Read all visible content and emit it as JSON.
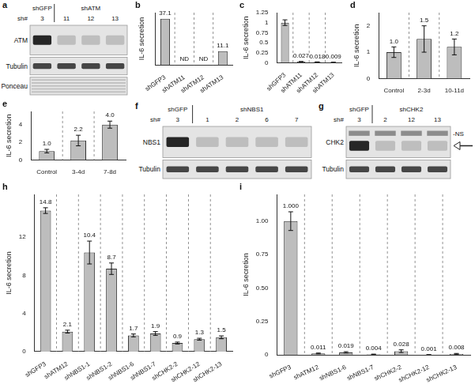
{
  "chart_data": [
    {
      "type": "bar",
      "title": "b",
      "y_label": "IL-6 secretion",
      "categories": [
        "shGFP3",
        "shATM11",
        "shATM12",
        "shATM13"
      ],
      "values": [
        37.1,
        null,
        null,
        11.1
      ],
      "value_labels": [
        "37.1",
        "ND",
        "ND",
        "11.1"
      ],
      "color": "#bdbdbd",
      "ylim": [
        0,
        42
      ],
      "tick_labels": "x",
      "grid": false,
      "data_labels": true
    },
    {
      "type": "bar",
      "title": "c",
      "y_label": "IL-6 secretion",
      "categories": [
        "shGFP3",
        "shATM11",
        "shATM12",
        "shATM13"
      ],
      "values": [
        1,
        0.027,
        0.018,
        0.009
      ],
      "value_labels": [
        null,
        "0.027",
        "0.018",
        "0.009"
      ],
      "errors": [
        0.07,
        0.002,
        0.002,
        0.001
      ],
      "color": "#bdbdbd",
      "ylim": [
        0,
        1.25
      ],
      "yticks": [
        0,
        0.25,
        0.5,
        0.75,
        1,
        1.25
      ],
      "grid": false,
      "data_labels": true
    },
    {
      "type": "bar",
      "title": "d",
      "y_label": "IL-6 secretion",
      "categories": [
        "Control",
        "2-3d",
        "10-11d"
      ],
      "values": [
        1,
        1.5,
        1.2
      ],
      "value_labels": [
        "1.0",
        "1.5",
        "1.2"
      ],
      "errors": [
        0.2,
        0.5,
        0.3
      ],
      "color": "#bdbdbd",
      "ylim": [
        0,
        2.5
      ],
      "yticks": [
        0,
        1,
        2
      ],
      "grid": false,
      "data_labels": true
    },
    {
      "type": "bar",
      "title": "e",
      "y_label": "IL-6 secretion",
      "categories": [
        "Control",
        "3-4d",
        "7-8d"
      ],
      "values": [
        1,
        2.2,
        4
      ],
      "value_labels": [
        "1.0",
        "2.2",
        "4.0"
      ],
      "errors": [
        0.2,
        0.6,
        0.4
      ],
      "color": "#bdbdbd",
      "ylim": [
        0,
        5.5
      ],
      "yticks": [
        0,
        2,
        4
      ],
      "grid": false,
      "data_labels": true
    },
    {
      "type": "bar",
      "title": "h",
      "y_label": "IL-6 secretion",
      "categories": [
        "shGFP3",
        "shATM12",
        "shNBS1-1",
        "shNBS1-2",
        "shNBS1-6",
        "shNBS1-7",
        "shCHK2-2",
        "shCHK2-12",
        "shCHK2-13"
      ],
      "values": [
        14.8,
        2.1,
        10.4,
        8.7,
        1.7,
        1.9,
        0.9,
        1.3,
        1.5
      ],
      "errors": [
        0.3,
        0.15,
        1.2,
        0.6,
        0.15,
        0.2,
        0.1,
        0.1,
        0.15
      ],
      "color": "#bdbdbd",
      "ylim": [
        0,
        16.5
      ],
      "yticks": [
        0,
        4,
        8,
        12
      ],
      "grid": false,
      "data_labels": true
    },
    {
      "type": "bar",
      "title": "i",
      "y_label": "IL-6 secretion",
      "categories": [
        "shGFP3",
        "shATM12",
        "shNBS1-6",
        "shNBS1-7",
        "shCHK2-2",
        "shCHK2-12",
        "shCHK2-13"
      ],
      "values": [
        1,
        0.011,
        0.019,
        0.004,
        0.028,
        0.001,
        0.008
      ],
      "value_labels": [
        "1.000",
        "0.011",
        "0.019",
        "0.004",
        "0.028",
        "0.001",
        "0.008"
      ],
      "errors": [
        0.07,
        0.003,
        0.005,
        0.002,
        0.01,
        0.001,
        0.003
      ],
      "color": "#bdbdbd",
      "ylim": [
        0,
        1.2
      ],
      "yticks": [
        0,
        0.25,
        {
          "value": 0.5,
          "label": "0.50"
        },
        0.75,
        {
          "value": 1,
          "label": "1.00"
        }
      ],
      "grid": false,
      "data_labels": true
    }
  ],
  "blots": [
    {
      "title": "a",
      "row_header": "sh#",
      "groups": [
        {
          "label": "shGFP",
          "lanes": [
            "3"
          ]
        },
        {
          "label": "shATM",
          "lanes": [
            "11",
            "12",
            "13"
          ]
        }
      ],
      "rows": [
        "ATM",
        "Tubulin",
        "Ponceau"
      ]
    },
    {
      "title": "f",
      "row_header": "sh#",
      "groups": [
        {
          "label": "shGFP",
          "lanes": [
            "3"
          ]
        },
        {
          "label": "shNBS1",
          "lanes": [
            "1",
            "2",
            "6",
            "7"
          ]
        }
      ],
      "rows": [
        "NBS1",
        "Tubulin"
      ]
    },
    {
      "title": "g",
      "row_header": "sh#",
      "groups": [
        {
          "label": "shGFP",
          "lanes": [
            "3"
          ]
        },
        {
          "label": "shCHK2",
          "lanes": [
            "2",
            "12",
            "13"
          ]
        }
      ],
      "rows": [
        "CHK2",
        "Tubulin"
      ],
      "annotation": "-NS"
    }
  ]
}
